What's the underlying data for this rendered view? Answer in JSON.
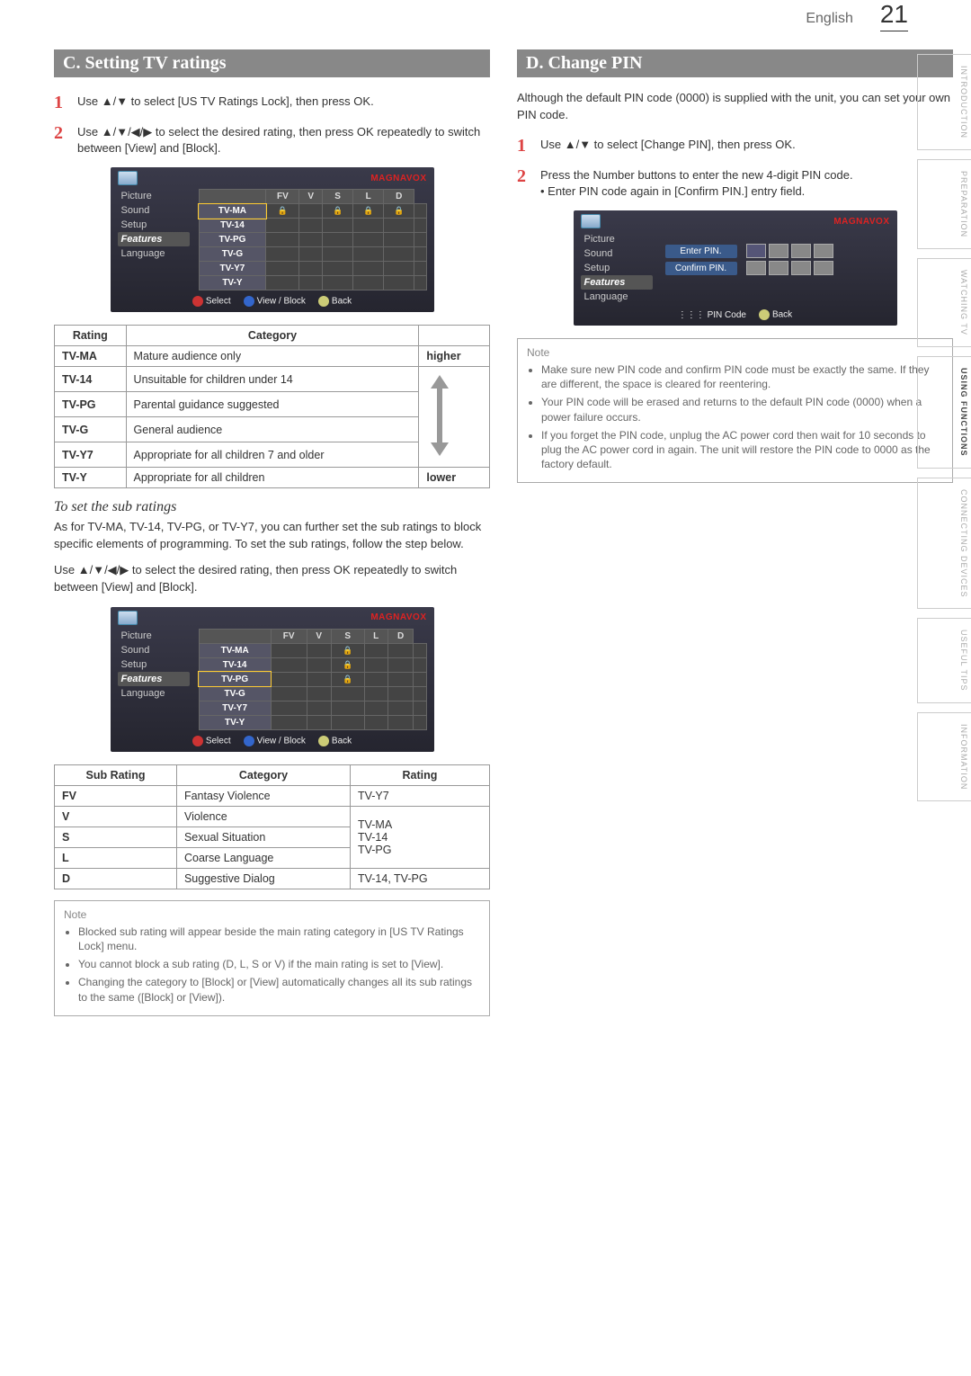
{
  "header": {
    "language": "English",
    "page_number": "21"
  },
  "side_tabs": [
    "INTRODUCTION",
    "PREPARATION",
    "WATCHING TV",
    "USING FUNCTIONS",
    "CONNECTING DEVICES",
    "USEFUL TIPS",
    "INFORMATION"
  ],
  "side_tab_active_index": 3,
  "section_c": {
    "title": "C. Setting TV ratings",
    "step1": "Use ▲/▼ to select [US TV Ratings Lock], then press OK.",
    "step2": "Use ▲/▼/◀/▶ to select the desired rating, then press OK repeatedly to switch between [View] and [Block].",
    "tv1": {
      "brand": "MAGNAVOX",
      "menu": [
        "Picture",
        "Sound",
        "Setup",
        "Features",
        "Language"
      ],
      "menu_selected": "Features",
      "cols": [
        "",
        "FV",
        "V",
        "S",
        "L",
        "D"
      ],
      "rows": [
        {
          "label": "TV-MA",
          "hl": true,
          "cells": [
            "🔒",
            "",
            "🔒",
            "🔒",
            "🔒",
            ""
          ]
        },
        {
          "label": "TV-14",
          "cells": [
            "",
            "",
            "",
            "",
            "",
            ""
          ]
        },
        {
          "label": "TV-PG",
          "cells": [
            "",
            "",
            "",
            "",
            "",
            ""
          ]
        },
        {
          "label": "TV-G",
          "cells": [
            "",
            "",
            "",
            "",
            "",
            ""
          ]
        },
        {
          "label": "TV-Y7",
          "cells": [
            "",
            "",
            "",
            "",
            "",
            ""
          ]
        },
        {
          "label": "TV-Y",
          "cells": [
            "",
            "",
            "",
            "",
            "",
            ""
          ]
        }
      ],
      "footer": {
        "select": "Select",
        "viewblock": "View / Block",
        "back": "Back"
      }
    },
    "rating_table": {
      "headers": [
        "Rating",
        "Category",
        ""
      ],
      "rows": [
        [
          "TV-MA",
          "Mature audience only",
          "higher"
        ],
        [
          "TV-14",
          "Unsuitable for children under 14",
          ""
        ],
        [
          "TV-PG",
          "Parental guidance suggested",
          ""
        ],
        [
          "TV-G",
          "General audience",
          ""
        ],
        [
          "TV-Y7",
          "Appropriate for all children 7 and older",
          ""
        ],
        [
          "TV-Y",
          "Appropriate for all children",
          "lower"
        ]
      ]
    },
    "sub_heading": "To set the sub ratings",
    "sub_para": "As for TV-MA, TV-14, TV-PG, or TV-Y7, you can further set the sub ratings to block specific elements of programming. To set the sub ratings, follow the step below.",
    "sub_instr": "Use ▲/▼/◀/▶ to select the desired rating, then press OK repeatedly to switch between [View] and [Block].",
    "tv2": {
      "brand": "MAGNAVOX",
      "menu": [
        "Picture",
        "Sound",
        "Setup",
        "Features",
        "Language"
      ],
      "menu_selected": "Features",
      "cols": [
        "",
        "FV",
        "V",
        "S",
        "L",
        "D"
      ],
      "rows": [
        {
          "label": "TV-MA",
          "cells": [
            "",
            "",
            "🔒",
            "",
            "",
            ""
          ]
        },
        {
          "label": "TV-14",
          "cells": [
            "",
            "",
            "🔒",
            "",
            "",
            ""
          ]
        },
        {
          "label": "TV-PG",
          "hl": true,
          "cells": [
            "",
            "",
            "🔒",
            "",
            "",
            ""
          ]
        },
        {
          "label": "TV-G",
          "cells": [
            "",
            "",
            "",
            "",
            "",
            ""
          ]
        },
        {
          "label": "TV-Y7",
          "cells": [
            "",
            "",
            "",
            "",
            "",
            ""
          ]
        },
        {
          "label": "TV-Y",
          "cells": [
            "",
            "",
            "",
            "",
            "",
            ""
          ]
        }
      ],
      "footer": {
        "select": "Select",
        "viewblock": "View / Block",
        "back": "Back"
      }
    },
    "subrating_table": {
      "headers": [
        "Sub Rating",
        "Category",
        "Rating"
      ],
      "rows": [
        [
          "FV",
          "Fantasy Violence",
          "TV-Y7"
        ],
        [
          "V",
          "Violence",
          ""
        ],
        [
          "S",
          "Sexual Situation",
          ""
        ],
        [
          "L",
          "Coarse Language",
          ""
        ],
        [
          "D",
          "Suggestive Dialog",
          "TV-14, TV-PG"
        ]
      ],
      "group_label": "TV-MA\nTV-14\nTV-PG"
    },
    "note": {
      "title": "Note",
      "items": [
        "Blocked sub rating will appear beside the main rating category in [US TV Ratings Lock] menu.",
        "You cannot block a sub rating (D, L, S or V) if the main rating is set to [View].",
        "Changing the category to [Block] or [View] automatically changes all its sub ratings to the same ([Block] or [View])."
      ]
    }
  },
  "section_d": {
    "title": "D. Change PIN",
    "intro": "Although the default PIN code (0000) is supplied with the unit, you can set your own PIN code.",
    "step1": "Use ▲/▼ to select [Change PIN], then press OK.",
    "step2": "Press the Number buttons to enter the new 4-digit PIN code.",
    "step2b": "Enter PIN code again in [Confirm PIN.] entry field.",
    "tv": {
      "brand": "MAGNAVOX",
      "menu": [
        "Picture",
        "Sound",
        "Setup",
        "Features",
        "Language"
      ],
      "menu_selected": "Features",
      "enter_label": "Enter PIN.",
      "confirm_label": "Confirm PIN.",
      "footer": {
        "pincode": "PIN Code",
        "back": "Back"
      }
    },
    "note": {
      "title": "Note",
      "items": [
        "Make sure new PIN code and confirm PIN code must be exactly the same. If they are different, the space is cleared for reentering.",
        "Your PIN code will be erased and returns to the default PIN code (0000) when a power failure occurs.",
        "If you forget the PIN code, unplug the AC power cord then wait for 10 seconds to plug the AC power cord in again. The unit will restore the PIN code to 0000 as the factory default."
      ]
    }
  }
}
